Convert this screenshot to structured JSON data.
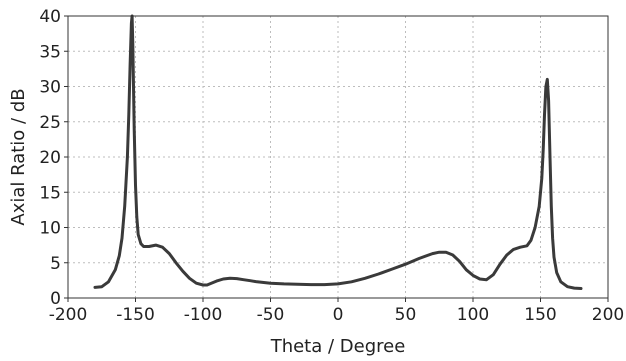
{
  "chart_data": {
    "type": "line",
    "title": "",
    "xlabel": "Theta / Degree",
    "ylabel": "Axial Ratio / dB",
    "xlim": [
      -200,
      200
    ],
    "ylim": [
      0,
      40
    ],
    "xticks": [
      -200,
      -150,
      -100,
      -50,
      0,
      50,
      100,
      150,
      200
    ],
    "yticks": [
      0,
      5,
      10,
      15,
      20,
      25,
      30,
      35,
      40
    ],
    "xtick_labels": [
      "-200",
      "-150",
      "-100",
      "-50",
      "0",
      "50",
      "100",
      "150",
      "200"
    ],
    "ytick_labels": [
      "0",
      "5",
      "10",
      "15",
      "20",
      "25",
      "30",
      "35",
      "40"
    ],
    "grid": true,
    "line_color": "#3a3a3a",
    "series": [
      {
        "x": [
          -180,
          -175,
          -170,
          -165,
          -162,
          -160,
          -158,
          -156,
          -155,
          -154,
          -153,
          -152.5,
          -152,
          -151,
          -150,
          -149,
          -148,
          -146,
          -144,
          -142,
          -140,
          -135,
          -130,
          -125,
          -120,
          -115,
          -110,
          -105,
          -100,
          -97,
          -95,
          -90,
          -85,
          -80,
          -75,
          -70,
          -65,
          -60,
          -50,
          -40,
          -30,
          -20,
          -10,
          0,
          10,
          20,
          30,
          40,
          50,
          60,
          70,
          75,
          80,
          85,
          90,
          95,
          100,
          105,
          110,
          115,
          120,
          125,
          130,
          135,
          140,
          143,
          146,
          149,
          151,
          152,
          153,
          154,
          155,
          156,
          157,
          158,
          159,
          160,
          162,
          165,
          170,
          175,
          180
        ],
        "y": [
          1.5,
          1.6,
          2.3,
          4.0,
          6.0,
          8.5,
          13.0,
          20.0,
          26.0,
          33.0,
          39.0,
          40.0,
          36.0,
          24.0,
          16.0,
          11.5,
          9.0,
          7.7,
          7.3,
          7.3,
          7.3,
          7.5,
          7.2,
          6.3,
          5.0,
          3.8,
          2.8,
          2.1,
          1.85,
          1.85,
          2.0,
          2.4,
          2.7,
          2.8,
          2.75,
          2.6,
          2.45,
          2.3,
          2.1,
          2.0,
          1.95,
          1.9,
          1.9,
          2.0,
          2.3,
          2.8,
          3.4,
          4.1,
          4.8,
          5.6,
          6.3,
          6.5,
          6.5,
          6.1,
          5.2,
          4.0,
          3.2,
          2.7,
          2.6,
          3.3,
          4.8,
          6.1,
          6.9,
          7.2,
          7.4,
          8.2,
          10.0,
          13.0,
          17.0,
          21.0,
          26.0,
          30.0,
          31.0,
          28.0,
          20.0,
          13.0,
          8.5,
          5.8,
          3.6,
          2.3,
          1.6,
          1.4,
          1.35
        ]
      }
    ]
  }
}
